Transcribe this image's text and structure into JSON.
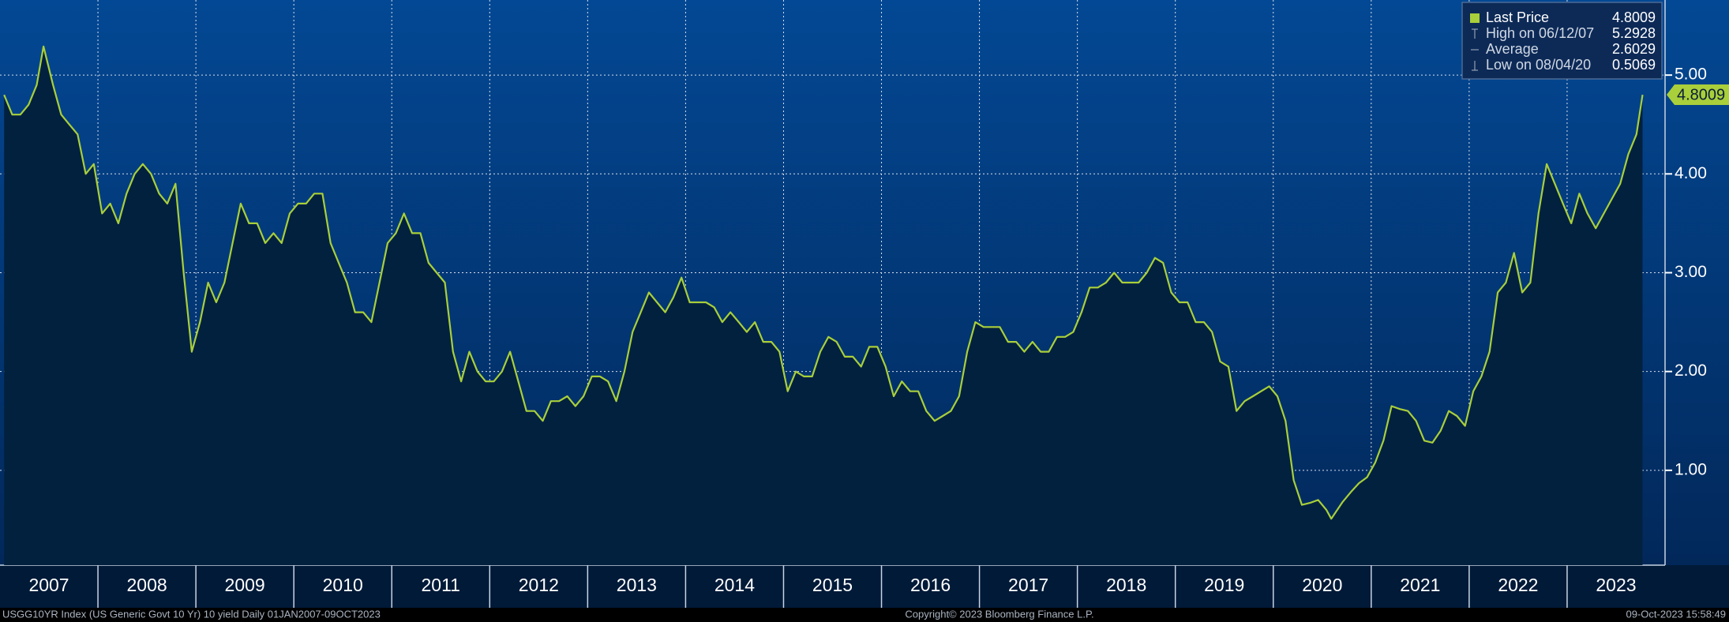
{
  "chart_data": {
    "type": "line",
    "source": "USGG10YR Index (US Generic Govt 10 Yr) 10 yield  Daily 01JAN2007-09OCT2023",
    "copyright": "Copyright© 2023 Bloomberg Finance L.P.",
    "timestamp": "09-Oct-2023 15:58:49",
    "legend": [
      {
        "label": "Last Price",
        "value": 4.8009
      },
      {
        "label": "High on 06/12/07",
        "value": 5.2928
      },
      {
        "label": "Average",
        "value": 2.6029
      },
      {
        "label": "Low on 08/04/20",
        "value": 0.5069
      }
    ],
    "xlim": [
      2007,
      2024
    ],
    "xticks": [
      2007,
      2008,
      2009,
      2010,
      2011,
      2012,
      2013,
      2014,
      2015,
      2016,
      2017,
      2018,
      2019,
      2020,
      2021,
      2022,
      2023
    ],
    "ylim": [
      0.04,
      5.76
    ],
    "yticks": [
      {
        "value": 1,
        "label": "1.00"
      },
      {
        "value": 2,
        "label": "2.00"
      },
      {
        "value": 3,
        "label": "3.00"
      },
      {
        "value": 4,
        "label": "4.00"
      },
      {
        "value": 5,
        "label": "5.00"
      }
    ],
    "grid": true,
    "series": [
      {
        "name": "Last Price",
        "color": "#a9cf3a",
        "x": [
          2007.042,
          2007.125,
          2007.208,
          2007.292,
          2007.375,
          2007.444,
          2007.542,
          2007.625,
          2007.708,
          2007.792,
          2007.875,
          2007.958,
          2008.042,
          2008.125,
          2008.208,
          2008.292,
          2008.375,
          2008.458,
          2008.542,
          2008.625,
          2008.708,
          2008.792,
          2008.875,
          2008.958,
          2009.042,
          2009.125,
          2009.208,
          2009.292,
          2009.375,
          2009.458,
          2009.542,
          2009.625,
          2009.708,
          2009.792,
          2009.875,
          2009.958,
          2010.042,
          2010.125,
          2010.208,
          2010.292,
          2010.375,
          2010.458,
          2010.542,
          2010.625,
          2010.708,
          2010.792,
          2010.875,
          2010.958,
          2011.042,
          2011.125,
          2011.208,
          2011.292,
          2011.375,
          2011.458,
          2011.542,
          2011.625,
          2011.708,
          2011.792,
          2011.875,
          2011.958,
          2012.042,
          2012.125,
          2012.208,
          2012.292,
          2012.375,
          2012.458,
          2012.542,
          2012.625,
          2012.708,
          2012.792,
          2012.875,
          2012.958,
          2013.042,
          2013.125,
          2013.208,
          2013.292,
          2013.375,
          2013.458,
          2013.542,
          2013.625,
          2013.708,
          2013.792,
          2013.875,
          2013.958,
          2014.042,
          2014.125,
          2014.208,
          2014.292,
          2014.375,
          2014.458,
          2014.542,
          2014.625,
          2014.708,
          2014.792,
          2014.875,
          2014.958,
          2015.042,
          2015.125,
          2015.208,
          2015.292,
          2015.375,
          2015.458,
          2015.542,
          2015.625,
          2015.708,
          2015.792,
          2015.875,
          2015.958,
          2016.042,
          2016.125,
          2016.208,
          2016.292,
          2016.375,
          2016.458,
          2016.542,
          2016.625,
          2016.708,
          2016.792,
          2016.875,
          2016.958,
          2017.042,
          2017.125,
          2017.208,
          2017.292,
          2017.375,
          2017.458,
          2017.542,
          2017.625,
          2017.708,
          2017.792,
          2017.875,
          2017.958,
          2018.042,
          2018.125,
          2018.208,
          2018.292,
          2018.375,
          2018.458,
          2018.542,
          2018.625,
          2018.708,
          2018.792,
          2018.875,
          2018.958,
          2019.042,
          2019.125,
          2019.208,
          2019.292,
          2019.375,
          2019.458,
          2019.542,
          2019.625,
          2019.708,
          2019.792,
          2019.875,
          2019.958,
          2020.042,
          2020.125,
          2020.208,
          2020.292,
          2020.375,
          2020.458,
          2020.542,
          2020.592,
          2020.708,
          2020.792,
          2020.875,
          2020.958,
          2021.042,
          2021.125,
          2021.208,
          2021.292,
          2021.375,
          2021.458,
          2021.542,
          2021.625,
          2021.708,
          2021.792,
          2021.875,
          2021.958,
          2022.042,
          2022.125,
          2022.208,
          2022.292,
          2022.375,
          2022.458,
          2022.542,
          2022.625,
          2022.708,
          2022.792,
          2022.875,
          2022.958,
          2023.042,
          2023.125,
          2023.208,
          2023.292,
          2023.375,
          2023.458,
          2023.542,
          2023.625,
          2023.708,
          2023.77
        ],
        "values": [
          4.8,
          4.6,
          4.6,
          4.7,
          4.9,
          5.29,
          4.9,
          4.6,
          4.5,
          4.4,
          4.0,
          4.1,
          3.6,
          3.7,
          3.5,
          3.8,
          4.0,
          4.1,
          4.0,
          3.8,
          3.7,
          3.9,
          3.0,
          2.2,
          2.5,
          2.9,
          2.7,
          2.9,
          3.3,
          3.7,
          3.5,
          3.5,
          3.3,
          3.4,
          3.3,
          3.6,
          3.7,
          3.7,
          3.8,
          3.8,
          3.3,
          3.1,
          2.9,
          2.6,
          2.6,
          2.5,
          2.9,
          3.3,
          3.4,
          3.6,
          3.4,
          3.4,
          3.1,
          3.0,
          2.9,
          2.2,
          1.9,
          2.2,
          2.0,
          1.9,
          1.9,
          2.0,
          2.2,
          1.9,
          1.6,
          1.6,
          1.5,
          1.7,
          1.7,
          1.75,
          1.65,
          1.75,
          1.95,
          1.95,
          1.9,
          1.7,
          2.0,
          2.4,
          2.6,
          2.8,
          2.7,
          2.6,
          2.75,
          2.95,
          2.7,
          2.7,
          2.7,
          2.65,
          2.5,
          2.6,
          2.5,
          2.4,
          2.5,
          2.3,
          2.3,
          2.2,
          1.8,
          2.0,
          1.95,
          1.95,
          2.2,
          2.35,
          2.3,
          2.15,
          2.15,
          2.05,
          2.25,
          2.25,
          2.05,
          1.75,
          1.9,
          1.8,
          1.8,
          1.6,
          1.5,
          1.55,
          1.6,
          1.75,
          2.2,
          2.5,
          2.45,
          2.45,
          2.45,
          2.3,
          2.3,
          2.2,
          2.3,
          2.2,
          2.2,
          2.35,
          2.35,
          2.4,
          2.6,
          2.85,
          2.85,
          2.9,
          3.0,
          2.9,
          2.9,
          2.9,
          3.0,
          3.15,
          3.1,
          2.8,
          2.7,
          2.7,
          2.5,
          2.5,
          2.4,
          2.1,
          2.05,
          1.6,
          1.7,
          1.75,
          1.8,
          1.85,
          1.75,
          1.5,
          0.9,
          0.65,
          0.67,
          0.7,
          0.6,
          0.51,
          0.68,
          0.78,
          0.87,
          0.93,
          1.08,
          1.3,
          1.65,
          1.62,
          1.6,
          1.5,
          1.3,
          1.28,
          1.4,
          1.6,
          1.55,
          1.45,
          1.8,
          1.95,
          2.2,
          2.8,
          2.9,
          3.2,
          2.8,
          2.9,
          3.6,
          4.1,
          3.9,
          3.7,
          3.5,
          3.8,
          3.6,
          3.45,
          3.6,
          3.75,
          3.9,
          4.2,
          4.4,
          4.8009
        ]
      }
    ]
  }
}
